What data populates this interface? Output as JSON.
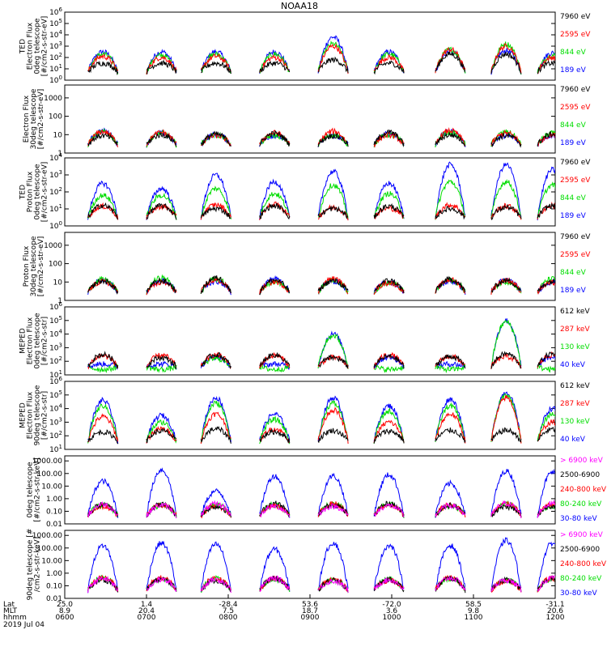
{
  "title": "NOAA18",
  "colors": {
    "black": "#000000",
    "red": "#ff0000",
    "green": "#00dd00",
    "blue": "#0000ff",
    "magenta": "#ff00ff"
  },
  "panels": [
    {
      "id": "ted-e-0deg",
      "ylabel": [
        "TED",
        "Electron Flux",
        "0deg telescope",
        "[#/cm2-s-str-eV]"
      ],
      "ticks": [
        "10^0",
        "10^1",
        "10^2",
        "10^3",
        "10^4",
        "10^5",
        "10^6"
      ],
      "ylim_log": [
        0,
        6
      ],
      "legend": [
        {
          "text": "7960 eV",
          "color": "#000000"
        },
        {
          "text": "2595 eV",
          "color": "#ff0000"
        },
        {
          "text": "844 eV",
          "color": "#00dd00"
        },
        {
          "text": "189 eV",
          "color": "#0000ff"
        }
      ]
    },
    {
      "id": "ted-e-30deg",
      "ylabel": [
        "Electron Flux",
        "30deg telescope",
        "[#/cm2-s-str-eV]"
      ],
      "ticks": [
        "1",
        "10",
        "100",
        "1000"
      ],
      "ylim_log": [
        0,
        3.7
      ],
      "legend": [
        {
          "text": "7960 eV",
          "color": "#000000"
        },
        {
          "text": "2595 eV",
          "color": "#ff0000"
        },
        {
          "text": "844 eV",
          "color": "#00dd00"
        },
        {
          "text": "189 eV",
          "color": "#0000ff"
        }
      ]
    },
    {
      "id": "ted-p-0deg",
      "ylabel": [
        "TED",
        "Proton Flux",
        "0deg telescope",
        "[#/cm2-s-str-eV]"
      ],
      "ticks": [
        "10^0",
        "10^1",
        "10^2",
        "10^3",
        "10^4"
      ],
      "ylim_log": [
        0,
        4
      ],
      "legend": [
        {
          "text": "7960 eV",
          "color": "#000000"
        },
        {
          "text": "2595 eV",
          "color": "#ff0000"
        },
        {
          "text": "844 eV",
          "color": "#00dd00"
        },
        {
          "text": "189 eV",
          "color": "#0000ff"
        }
      ]
    },
    {
      "id": "ted-p-30deg",
      "ylabel": [
        "Proton Flux",
        "30deg telescope",
        "[#/cm2-s-str-eV]"
      ],
      "ticks": [
        "1",
        "10",
        "100",
        "1000"
      ],
      "ylim_log": [
        0,
        3.7
      ],
      "legend": [
        {
          "text": "7960 eV",
          "color": "#000000"
        },
        {
          "text": "2595 eV",
          "color": "#ff0000"
        },
        {
          "text": "844 eV",
          "color": "#00dd00"
        },
        {
          "text": "189 eV",
          "color": "#0000ff"
        }
      ]
    },
    {
      "id": "meped-e-0deg",
      "ylabel": [
        "MEPED",
        "Electron Flux",
        "0deg telescope",
        "[#/cm2-s-str]"
      ],
      "ticks": [
        "10^1",
        "10^2",
        "10^3",
        "10^4",
        "10^5",
        "10^6"
      ],
      "ylim_log": [
        1,
        6
      ],
      "legend": [
        {
          "text": "612 keV",
          "color": "#000000"
        },
        {
          "text": "287 keV",
          "color": "#ff0000"
        },
        {
          "text": "130 keV",
          "color": "#00dd00"
        },
        {
          "text": "40 keV",
          "color": "#0000ff"
        }
      ]
    },
    {
      "id": "meped-e-90deg",
      "ylabel": [
        "MEPED",
        "Electron Flux",
        "90deg telescope",
        "[#/cm2-s-str]"
      ],
      "ticks": [
        "10^1",
        "10^2",
        "10^3",
        "10^4",
        "10^5",
        "10^6"
      ],
      "ylim_log": [
        1,
        6
      ],
      "legend": [
        {
          "text": "612 keV",
          "color": "#000000"
        },
        {
          "text": "287 keV",
          "color": "#ff0000"
        },
        {
          "text": "130 keV",
          "color": "#00dd00"
        },
        {
          "text": "40 keV",
          "color": "#0000ff"
        }
      ]
    },
    {
      "id": "meped-p-0deg",
      "ylabel": [
        "0deg telescope",
        "[#/cm2-s-str-keV]"
      ],
      "ticks": [
        "0.01",
        "0.10",
        "1.00",
        "10.00",
        "100.00",
        "1000.00"
      ],
      "ylim_log": [
        -2,
        3.4
      ],
      "legend": [
        {
          "text": "> 6900 keV",
          "color": "#ff00ff"
        },
        {
          "text": "2500-6900",
          "color": "#000000"
        },
        {
          "text": "240-800 keV",
          "color": "#ff0000"
        },
        {
          "text": "80-240 keV",
          "color": "#00dd00"
        },
        {
          "text": "30-80 keV",
          "color": "#0000ff"
        }
      ]
    },
    {
      "id": "meped-p-90deg",
      "ylabel": [
        "90deg telescope [#",
        "/cm2-s-str-keV]"
      ],
      "ticks": [
        "0.01",
        "0.10",
        "1.00",
        "10.00",
        "100.00",
        "1000.00"
      ],
      "ylim_log": [
        -2,
        3.4
      ],
      "legend": [
        {
          "text": "> 6900 keV",
          "color": "#ff00ff"
        },
        {
          "text": "2500-6900",
          "color": "#000000"
        },
        {
          "text": "240-800 keV",
          "color": "#ff0000"
        },
        {
          "text": "80-240 keV",
          "color": "#00dd00"
        },
        {
          "text": "30-80 keV",
          "color": "#0000ff"
        }
      ]
    }
  ],
  "bottom_axis": {
    "row_labels": [
      "Lat",
      "MLT",
      "hhmm"
    ],
    "lat": [
      "25.0",
      "1.4",
      "-28.4",
      "53.6",
      "-72.0",
      "58.5",
      "-31.1"
    ],
    "mlt": [
      "8.9",
      "20.4",
      "7.5",
      "18.7",
      "3.6",
      "9.8",
      "20.6"
    ],
    "hhmm": [
      "0600",
      "0700",
      "0800",
      "0900",
      "1000",
      "1100",
      "1200"
    ],
    "date": "2019 Jul 04"
  },
  "chart_data": {
    "type": "line",
    "title": "NOAA18",
    "x_label": "hhmm",
    "x": [
      "0600",
      "0700",
      "0800",
      "0900",
      "1000",
      "1100",
      "1200"
    ],
    "passes_hhmm": [
      "0628",
      "0711",
      "0751",
      "0834",
      "0917",
      "0958",
      "1043",
      "1124",
      "1158"
    ],
    "series": [
      {
        "panel": "TED Electron 0deg",
        "name": "189 eV",
        "peak_log10": [
          2.5,
          2.5,
          2.5,
          2.5,
          3.8,
          2.5,
          2.5,
          2.6,
          2.4
        ]
      },
      {
        "panel": "TED Electron 0deg",
        "name": "844 eV",
        "peak_log10": [
          2.3,
          2.2,
          2.3,
          2.3,
          3.2,
          2.3,
          2.7,
          3.2,
          2.2
        ]
      },
      {
        "panel": "TED Electron 0deg",
        "name": "2595 eV",
        "peak_log10": [
          2.1,
          2.0,
          2.1,
          2.0,
          3.0,
          2.0,
          2.7,
          3.0,
          2.0
        ]
      },
      {
        "panel": "TED Electron 0deg",
        "name": "7960 eV",
        "peak_log10": [
          1.5,
          1.5,
          1.5,
          1.5,
          1.8,
          1.5,
          2.3,
          2.3,
          1.5
        ]
      },
      {
        "panel": "TED Proton 0deg",
        "name": "189 eV",
        "peak_log10": [
          2.5,
          2.2,
          3.0,
          2.6,
          3.2,
          2.5,
          3.6,
          3.6,
          3.3
        ]
      },
      {
        "panel": "TED Proton 0deg",
        "name": "844 eV",
        "peak_log10": [
          1.8,
          1.8,
          2.2,
          1.9,
          2.4,
          1.9,
          2.6,
          2.6,
          2.4
        ]
      },
      {
        "panel": "MEPED Electron 0deg",
        "name": "40 keV",
        "peak_log10": [
          1.8,
          1.8,
          2.3,
          1.8,
          4.0,
          2.3,
          1.8,
          5.0,
          2.3
        ]
      },
      {
        "panel": "MEPED Electron 0deg",
        "name": "130 keV",
        "peak_log10": [
          1.4,
          1.4,
          2.2,
          1.4,
          3.9,
          1.4,
          1.4,
          4.9,
          1.4
        ]
      },
      {
        "panel": "MEPED Electron 90deg",
        "name": "40 keV",
        "peak_log10": [
          4.6,
          3.5,
          4.8,
          3.6,
          4.8,
          4.2,
          4.7,
          5.2,
          4.0
        ]
      },
      {
        "panel": "MEPED Electron 90deg",
        "name": "130 keV",
        "peak_log10": [
          4.2,
          3.0,
          4.4,
          3.2,
          4.4,
          3.8,
          4.2,
          5.0,
          3.6
        ]
      },
      {
        "panel": "MEPED Electron 90deg",
        "name": "287 keV",
        "peak_log10": [
          3.4,
          2.5,
          3.6,
          2.5,
          3.9,
          3.0,
          3.6,
          4.8,
          3.0
        ]
      },
      {
        "panel": "MEPED Proton 0deg",
        "name": "30-80 keV",
        "peak_log10": [
          1.4,
          2.3,
          0.6,
          1.8,
          1.8,
          1.9,
          1.2,
          2.2,
          2.1
        ]
      },
      {
        "panel": "MEPED Proton 90deg",
        "name": "30-80 keV",
        "peak_log10": [
          2.2,
          2.4,
          2.3,
          1.9,
          2.4,
          2.2,
          2.2,
          2.6,
          2.4
        ]
      }
    ]
  }
}
